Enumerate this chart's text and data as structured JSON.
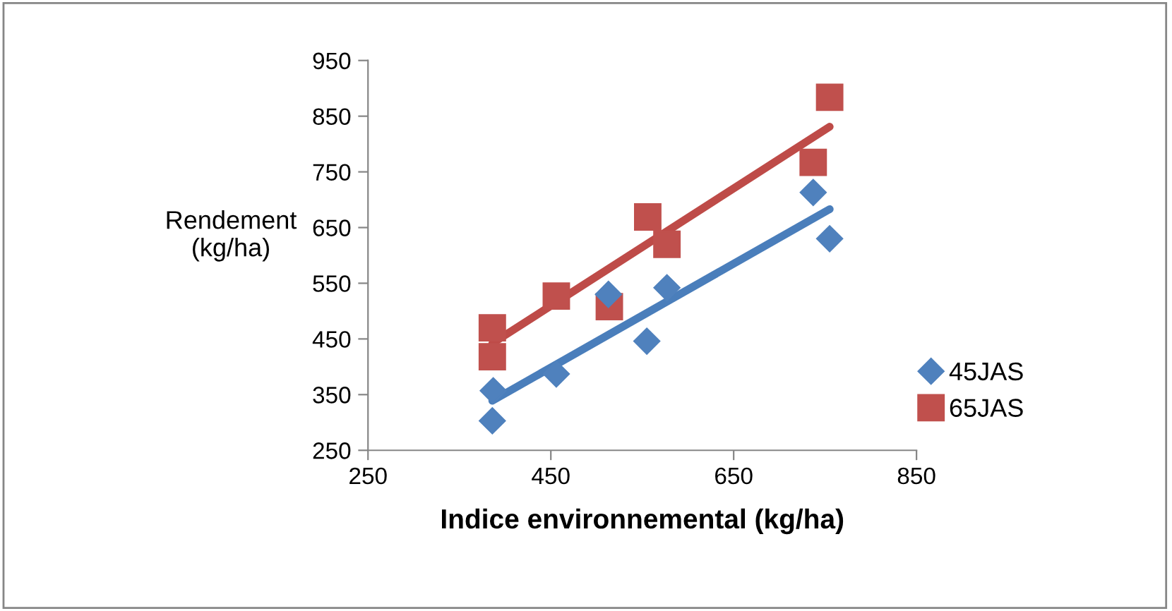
{
  "chart_data": {
    "type": "scatter",
    "xlabel": "Indice environnemental (kg/ha)",
    "ylabel": "Rendement\n(kg/ha)",
    "xlim": [
      250,
      850
    ],
    "xticks": [
      250,
      450,
      650,
      850
    ],
    "ylim": [
      250,
      950
    ],
    "yticks": [
      250,
      350,
      450,
      550,
      650,
      750,
      850,
      950
    ],
    "grid": false,
    "legend": "right",
    "series": [
      {
        "name": "45JAS",
        "color": "#4f81bd",
        "marker": "diamond",
        "x": [
          386,
          387,
          456,
          513,
          555,
          577,
          737,
          755
        ],
        "values": [
          303,
          357,
          387,
          530,
          446,
          542,
          713,
          630
        ]
      },
      {
        "name": "65JAS",
        "color": "#c0504d",
        "marker": "square",
        "x": [
          386,
          386,
          456,
          514,
          556,
          577,
          737,
          755
        ],
        "values": [
          470,
          418,
          527,
          508,
          669,
          620,
          767,
          884
        ]
      },
      {
        "type": "line",
        "color": "#4a7ebb",
        "x": [
          386,
          755
        ],
        "values": [
          339,
          683
        ]
      },
      {
        "type": "line",
        "color": "#be4b48",
        "x": [
          386,
          755
        ],
        "values": [
          442,
          831
        ]
      }
    ]
  }
}
